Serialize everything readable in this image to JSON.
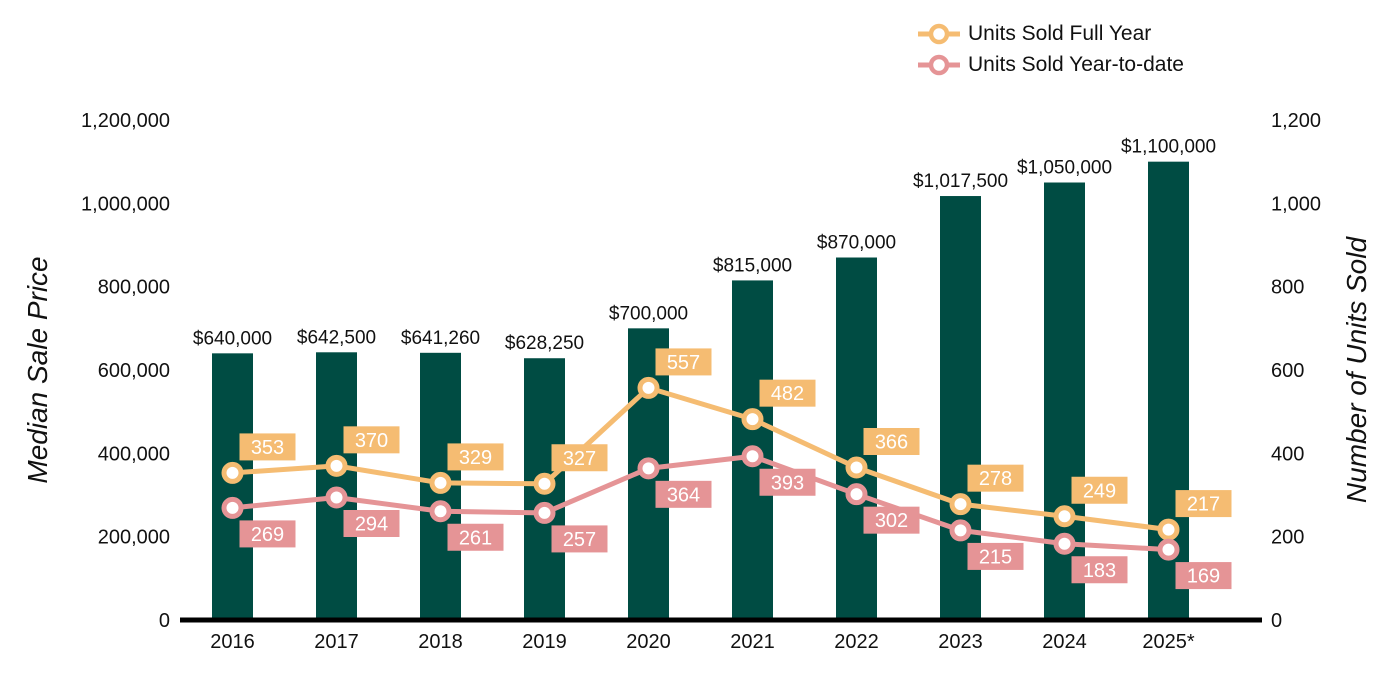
{
  "chart_data": {
    "type": "bar",
    "categories": [
      "2016",
      "2017",
      "2018",
      "2019",
      "2020",
      "2021",
      "2022",
      "2023",
      "2024",
      "2025*"
    ],
    "bars": {
      "name": "Median Sale Price",
      "values": [
        640000,
        642500,
        641260,
        628250,
        700000,
        815000,
        870000,
        1017500,
        1050000,
        1100000
      ],
      "labels": [
        "$640,000",
        "$642,500",
        "$641,260",
        "$628,250",
        "$700,000",
        "$815,000",
        "$870,000",
        "$1,017,500",
        "$1,050,000",
        "$1,100,000"
      ],
      "color": "#004c43"
    },
    "series": [
      {
        "name": "Units Sold Full Year",
        "values": [
          353,
          370,
          329,
          327,
          557,
          482,
          366,
          278,
          249,
          217
        ],
        "color": "#f5bc72"
      },
      {
        "name": "Units Sold Year-to-date",
        "values": [
          269,
          294,
          261,
          257,
          364,
          393,
          302,
          215,
          183,
          169
        ],
        "color": "#e59496"
      }
    ],
    "ylabel": "Median Sale Price",
    "y2label": "Number of Units Sold",
    "ylim": [
      0,
      1200000
    ],
    "y2lim": [
      0,
      1200
    ],
    "yticks": [
      "0",
      "200,000",
      "400,000",
      "600,000",
      "800,000",
      "1,000,000",
      "1,200,000"
    ],
    "y2ticks": [
      "0",
      "200",
      "400",
      "600",
      "800",
      "1,000",
      "1,200"
    ],
    "grid": false,
    "legend_position": "top-right"
  }
}
